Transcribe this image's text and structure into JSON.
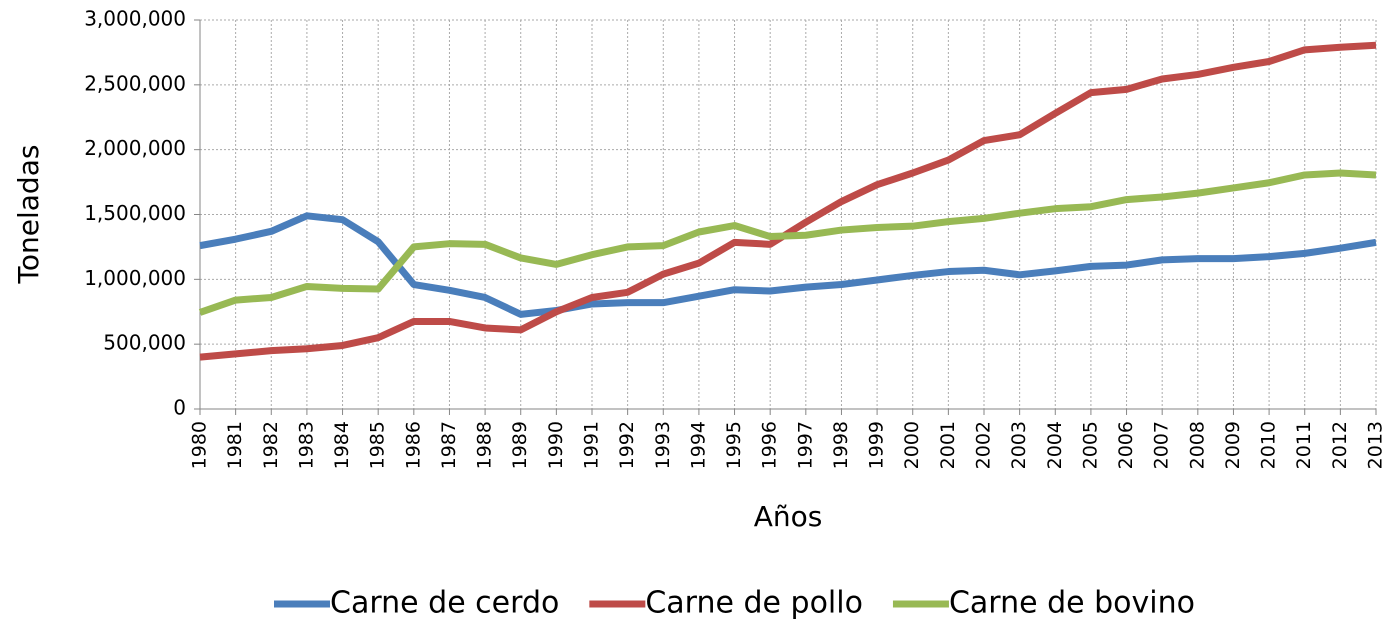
{
  "chart_data": {
    "type": "line",
    "x_label": "Años",
    "y_label": "Toneladas",
    "categories": [
      "1980",
      "1981",
      "1982",
      "1983",
      "1984",
      "1985",
      "1986",
      "1987",
      "1988",
      "1989",
      "1990",
      "1991",
      "1992",
      "1993",
      "1994",
      "1995",
      "1996",
      "1997",
      "1998",
      "1999",
      "2000",
      "2001",
      "2002",
      "2003",
      "2004",
      "2005",
      "2006",
      "2007",
      "2008",
      "2009",
      "2010",
      "2011",
      "2012",
      "2013"
    ],
    "series": [
      {
        "name": "Carne de cerdo",
        "color": "#4a7ebb",
        "values": [
          1260000,
          1310000,
          1370000,
          1490000,
          1460000,
          1290000,
          960000,
          915000,
          860000,
          730000,
          760000,
          810000,
          820000,
          820000,
          870000,
          920000,
          910000,
          940000,
          960000,
          995000,
          1030000,
          1060000,
          1070000,
          1035000,
          1065000,
          1100000,
          1110000,
          1150000,
          1160000,
          1160000,
          1175000,
          1200000,
          1240000,
          1285000
        ]
      },
      {
        "name": "Carne de pollo",
        "color": "#be4b48",
        "values": [
          400000,
          425000,
          450000,
          465000,
          490000,
          550000,
          675000,
          675000,
          625000,
          610000,
          750000,
          860000,
          900000,
          1040000,
          1125000,
          1285000,
          1270000,
          1440000,
          1600000,
          1730000,
          1820000,
          1920000,
          2070000,
          2115000,
          2280000,
          2440000,
          2465000,
          2545000,
          2580000,
          2635000,
          2680000,
          2770000,
          2790000,
          2805000
        ]
      },
      {
        "name": "Carne de bovino",
        "color": "#98b954",
        "values": [
          745000,
          840000,
          860000,
          945000,
          930000,
          925000,
          1250000,
          1275000,
          1270000,
          1165000,
          1115000,
          1190000,
          1250000,
          1260000,
          1365000,
          1415000,
          1330000,
          1340000,
          1380000,
          1400000,
          1410000,
          1445000,
          1470000,
          1510000,
          1545000,
          1560000,
          1615000,
          1635000,
          1665000,
          1705000,
          1745000,
          1805000,
          1820000,
          1805000
        ]
      }
    ],
    "ylim": [
      0,
      3000000
    ],
    "yticks": [
      0,
      {
        "value": 500000,
        "label": "500,000"
      },
      {
        "value": 1000000,
        "label": "1,000,000"
      },
      {
        "value": 1500000,
        "label": "1,500,000"
      },
      {
        "value": 2000000,
        "label": "2,000,000"
      },
      {
        "value": 2500000,
        "label": "2,500,000"
      },
      {
        "value": 3000000,
        "label": "3,000,000"
      }
    ],
    "grid": true,
    "legend": "bottom"
  }
}
